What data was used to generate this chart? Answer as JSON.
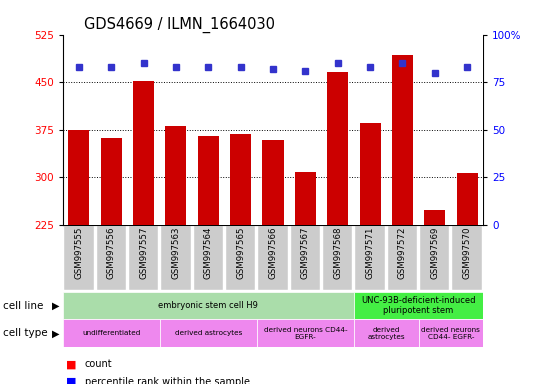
{
  "title": "GDS4669 / ILMN_1664030",
  "samples": [
    "GSM997555",
    "GSM997556",
    "GSM997557",
    "GSM997563",
    "GSM997564",
    "GSM997565",
    "GSM997566",
    "GSM997567",
    "GSM997568",
    "GSM997571",
    "GSM997572",
    "GSM997569",
    "GSM997570"
  ],
  "counts": [
    375,
    362,
    452,
    381,
    365,
    368,
    358,
    308,
    466,
    385,
    493,
    248,
    307
  ],
  "percentiles": [
    83,
    83,
    85,
    83,
    83,
    83,
    82,
    81,
    85,
    83,
    85,
    80,
    83
  ],
  "ylim_left": [
    225,
    525
  ],
  "ylim_right": [
    0,
    100
  ],
  "yticks_left": [
    225,
    300,
    375,
    450,
    525
  ],
  "yticks_right": [
    0,
    25,
    50,
    75,
    100
  ],
  "bar_color": "#cc0000",
  "dot_color": "#3333cc",
  "bar_width": 0.65,
  "cell_line_groups": [
    {
      "label": "embryonic stem cell H9",
      "start": 0,
      "end": 9,
      "color": "#aaddaa"
    },
    {
      "label": "UNC-93B-deficient-induced\npluripotent stem",
      "start": 9,
      "end": 13,
      "color": "#44ee44"
    }
  ],
  "cell_type_groups": [
    {
      "label": "undifferentiated",
      "start": 0,
      "end": 3,
      "color": "#ee88ee"
    },
    {
      "label": "derived astrocytes",
      "start": 3,
      "end": 6,
      "color": "#ee88ee"
    },
    {
      "label": "derived neurons CD44-\nEGFR-",
      "start": 6,
      "end": 9,
      "color": "#ee88ee"
    },
    {
      "label": "derived\nastrocytes",
      "start": 9,
      "end": 11,
      "color": "#ee88ee"
    },
    {
      "label": "derived neurons\nCD44- EGFR-",
      "start": 11,
      "end": 13,
      "color": "#ee88ee"
    }
  ],
  "gridlines": [
    300,
    375,
    450
  ],
  "xtick_bg": "#cccccc",
  "background_color": "#ffffff"
}
